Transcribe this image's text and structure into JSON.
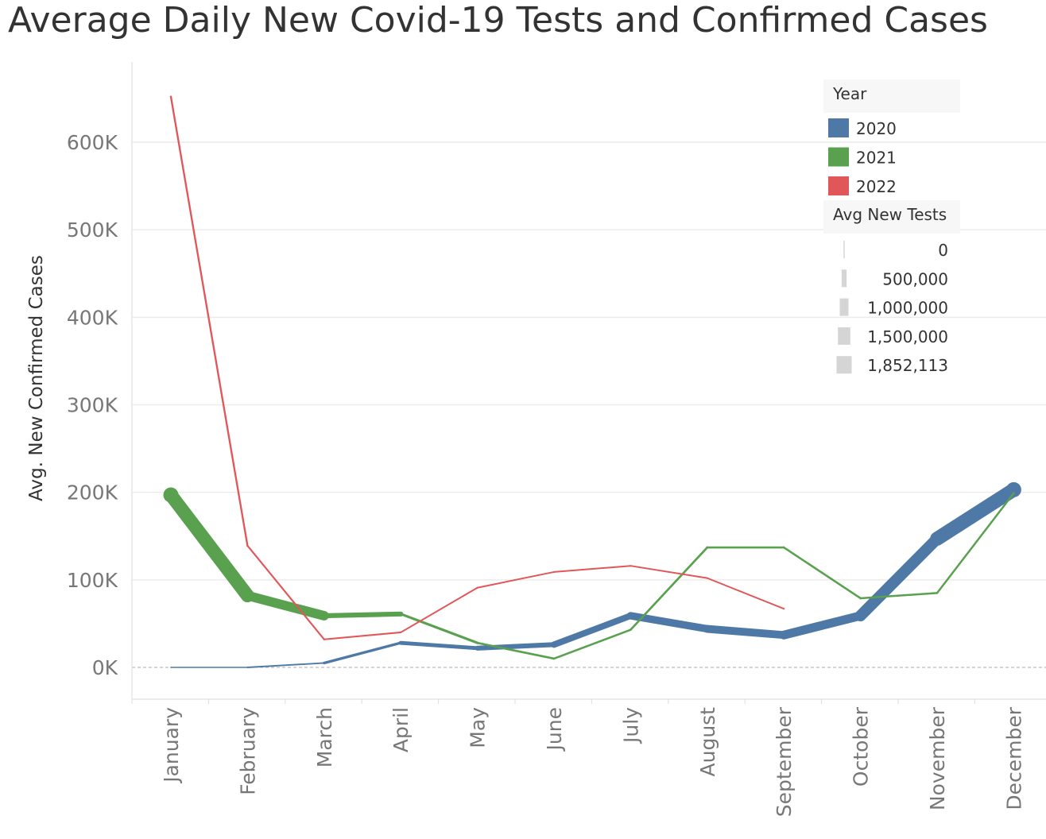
{
  "chart_data": {
    "type": "line",
    "title": "Average Daily New Covid-19 Tests and Confirmed Cases",
    "ylabel": "Avg. New Confirmed Cases",
    "xlabel": "",
    "ylim": [
      -35000,
      690000
    ],
    "yticks": [
      0,
      100000,
      200000,
      300000,
      400000,
      500000,
      600000
    ],
    "ytick_labels": [
      "0K",
      "100K",
      "200K",
      "300K",
      "400K",
      "500K",
      "600K"
    ],
    "categories": [
      "January",
      "February",
      "March",
      "April",
      "May",
      "June",
      "July",
      "August",
      "September",
      "October",
      "November",
      "December"
    ],
    "grid": true,
    "legend": {
      "title": "Year",
      "position": "top-right",
      "size_title": "Avg New Tests",
      "size_items": [
        {
          "label": "0",
          "value": 0
        },
        {
          "label": "500,000",
          "value": 500000
        },
        {
          "label": "1,000,000",
          "value": 1000000
        },
        {
          "label": "1,500,000",
          "value": 1500000
        },
        {
          "label": "1,852,113",
          "value": 1852113
        }
      ]
    },
    "series": [
      {
        "name": "2020",
        "color": "#4e79a7",
        "values": [
          0,
          0,
          5000,
          28000,
          22000,
          26000,
          59000,
          44000,
          37000,
          59000,
          147000,
          203000
        ],
        "tests": [
          0,
          0,
          80000,
          300000,
          420000,
          560000,
          800000,
          870000,
          900000,
          1150000,
          1550000,
          1852113
        ]
      },
      {
        "name": "2021",
        "color": "#59a14f",
        "values": [
          197000,
          82000,
          59000,
          61000,
          28000,
          10000,
          43000,
          137000,
          137000,
          79000,
          85000,
          199000
        ],
        "tests": [
          1852113,
          1400000,
          800000,
          200000,
          150000,
          100000,
          120000,
          130000,
          120000,
          100000,
          110000,
          100000
        ]
      },
      {
        "name": "2022",
        "color": "#e15759",
        "values": [
          652000,
          139000,
          32000,
          40000,
          91000,
          109000,
          116000,
          102000,
          67000,
          null,
          null,
          null
        ],
        "tests": [
          100000,
          80000,
          60000,
          50000,
          50000,
          50000,
          50000,
          50000,
          50000,
          null,
          null,
          null
        ]
      }
    ]
  }
}
